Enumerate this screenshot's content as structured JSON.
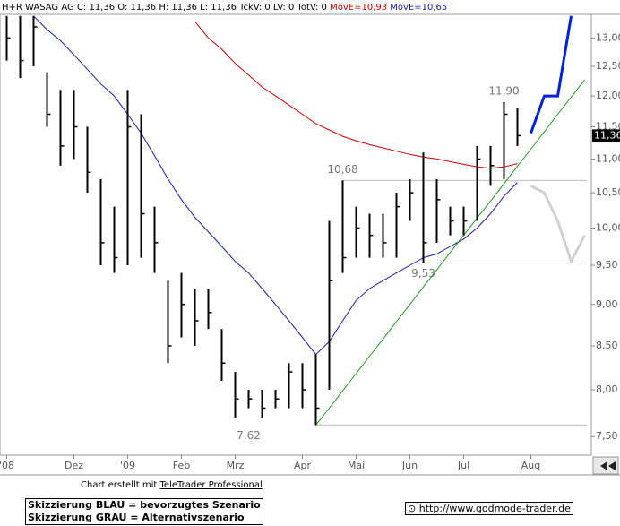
{
  "chart_data": {
    "type": "ohlc",
    "header": "H+R WASAG AG C: 11,36 O: 11,36 H: 11,36 L: 11,36 TckV: 0 LV: 0 TotV: 0",
    "categories": [
      "'08",
      null,
      null,
      null,
      null,
      "Dez",
      null,
      null,
      null,
      "'09",
      null,
      null,
      null,
      "Feb",
      null,
      null,
      null,
      "Mrz",
      null,
      null,
      null,
      null,
      "Apr",
      null,
      null,
      null,
      "Mai",
      null,
      null,
      null,
      "Jun",
      null,
      null,
      null,
      "Jul",
      null,
      null,
      null,
      null,
      "Aug",
      null,
      null,
      null,
      null
    ],
    "high": [
      13.4,
      13.4,
      13.4,
      12.4,
      12.1,
      12.1,
      11.5,
      10.7,
      10.3,
      12.1,
      11.7,
      10.3,
      9.3,
      9.4,
      9.2,
      9.2,
      8.7,
      8.2,
      8.0,
      8.0,
      8.0,
      8.3,
      8.3,
      8.4,
      10.1,
      10.68,
      10.3,
      10.2,
      10.2,
      10.5,
      10.7,
      11.1,
      10.7,
      10.3,
      10.3,
      11.2,
      11.2,
      11.9,
      11.8,
      null,
      null,
      null,
      null,
      null
    ],
    "low": [
      12.6,
      12.3,
      12.5,
      11.5,
      10.9,
      11.0,
      10.5,
      9.5,
      9.4,
      9.5,
      9.6,
      9.4,
      8.3,
      8.6,
      8.5,
      8.7,
      8.1,
      7.7,
      7.8,
      7.7,
      7.8,
      7.8,
      7.8,
      7.62,
      8.0,
      9.4,
      9.6,
      9.6,
      9.6,
      9.6,
      10.1,
      9.53,
      9.8,
      9.9,
      9.9,
      10.1,
      10.6,
      10.7,
      11.2,
      null,
      null,
      null,
      null,
      null
    ],
    "close": [
      13.0,
      12.6,
      13.2,
      11.7,
      11.2,
      11.5,
      10.8,
      9.8,
      9.6,
      11.5,
      10.2,
      9.8,
      8.5,
      9.0,
      8.8,
      8.9,
      8.3,
      7.9,
      7.9,
      7.8,
      7.9,
      8.2,
      8.0,
      7.8,
      9.3,
      9.6,
      10.0,
      9.9,
      9.8,
      10.3,
      10.5,
      9.8,
      10.4,
      10.1,
      10.1,
      11.0,
      10.9,
      11.7,
      11.36,
      null,
      null,
      null,
      null,
      null
    ],
    "color": "#000000",
    "series": [
      {
        "name": "MovE=10,93",
        "color": "#cc0000",
        "width": 1,
        "values": [
          null,
          null,
          null,
          null,
          null,
          null,
          null,
          null,
          null,
          null,
          null,
          null,
          null,
          null,
          13.3,
          13.0,
          12.8,
          12.55,
          12.35,
          12.15,
          12.0,
          11.85,
          11.7,
          11.55,
          11.45,
          11.35,
          11.28,
          11.22,
          11.17,
          11.12,
          11.07,
          11.03,
          11.0,
          10.96,
          10.92,
          10.88,
          10.86,
          10.88,
          10.93,
          null,
          null,
          null,
          null,
          null
        ]
      },
      {
        "name": "MovE=10,65",
        "color": "#1a1aa6",
        "width": 1,
        "values": [
          null,
          null,
          13.4,
          13.15,
          12.95,
          12.7,
          12.45,
          12.2,
          12.0,
          11.7,
          11.4,
          11.05,
          10.7,
          10.4,
          10.15,
          9.95,
          9.75,
          9.55,
          9.4,
          9.2,
          9.0,
          8.8,
          8.6,
          8.4,
          8.55,
          8.8,
          9.05,
          9.2,
          9.3,
          9.4,
          9.5,
          9.6,
          9.65,
          9.75,
          9.85,
          10.0,
          10.2,
          10.45,
          10.65,
          null,
          null,
          null,
          null,
          null
        ]
      }
    ],
    "overlays": [
      {
        "color": "#1f9a1f",
        "width": 1,
        "values": [
          null,
          null,
          null,
          null,
          null,
          null,
          null,
          null,
          null,
          null,
          null,
          null,
          null,
          null,
          null,
          null,
          null,
          null,
          null,
          null,
          null,
          null,
          null,
          7.62,
          7.8,
          7.99,
          8.18,
          8.38,
          8.58,
          8.79,
          9.0,
          9.22,
          9.44,
          9.67,
          9.9,
          10.14,
          10.38,
          10.63,
          10.89,
          11.15,
          11.42,
          11.7,
          11.98,
          12.27
        ]
      },
      {
        "color": "#0022dd",
        "width": 3,
        "values": [
          null,
          null,
          null,
          null,
          null,
          null,
          null,
          null,
          null,
          null,
          null,
          null,
          null,
          null,
          null,
          null,
          null,
          null,
          null,
          null,
          null,
          null,
          null,
          null,
          null,
          null,
          null,
          null,
          null,
          null,
          null,
          null,
          null,
          null,
          null,
          null,
          null,
          null,
          null,
          11.4,
          12.0,
          12.0,
          13.4,
          null
        ]
      },
      {
        "color": "#d0d0d0",
        "width": 3,
        "values": [
          null,
          null,
          null,
          null,
          null,
          null,
          null,
          null,
          null,
          null,
          null,
          null,
          null,
          null,
          null,
          null,
          null,
          null,
          null,
          null,
          null,
          null,
          null,
          null,
          null,
          null,
          null,
          null,
          null,
          null,
          null,
          null,
          null,
          null,
          null,
          null,
          null,
          null,
          null,
          10.6,
          10.5,
          10.1,
          9.55,
          9.9
        ]
      }
    ],
    "annotations": [
      {
        "value": 11.9,
        "label": "11,90"
      },
      {
        "value": 10.68,
        "label": "10,68"
      },
      {
        "value": 9.53,
        "label": "9,53"
      },
      {
        "value": 7.62,
        "label": "7,62"
      }
    ],
    "last_price": {
      "value": 11.36,
      "label": "11,36"
    },
    "log_scale": true,
    "ylim": [
      7.31,
      13.43
    ],
    "yticks": [
      {
        "value": 7.5,
        "label": "7,50"
      },
      {
        "value": 8.0,
        "label": "8,00"
      },
      {
        "value": 8.5,
        "label": "8,50"
      },
      {
        "value": 9.0,
        "label": "9,00"
      },
      {
        "value": 9.5,
        "label": "9,50"
      },
      {
        "value": 10.0,
        "label": "10,00"
      },
      {
        "value": 10.5,
        "label": "10,50"
      },
      {
        "value": 11.0,
        "label": "11,00"
      },
      {
        "value": 11.5,
        "label": "11,50"
      },
      {
        "value": 12.0,
        "label": "12,00"
      },
      {
        "value": 12.5,
        "label": "12,50"
      },
      {
        "value": 13.0,
        "label": "13,00"
      }
    ]
  },
  "footer": {
    "credit": "Chart erstellt mit",
    "credit_link": "TeleTrader Professional",
    "legend_blue": "Skizzierung BLAU = bevorzugtes Szenario",
    "legend_gray": "Skizzierung GRAU = Alternativszenario",
    "url": "http://www.godmode-trader.de"
  }
}
